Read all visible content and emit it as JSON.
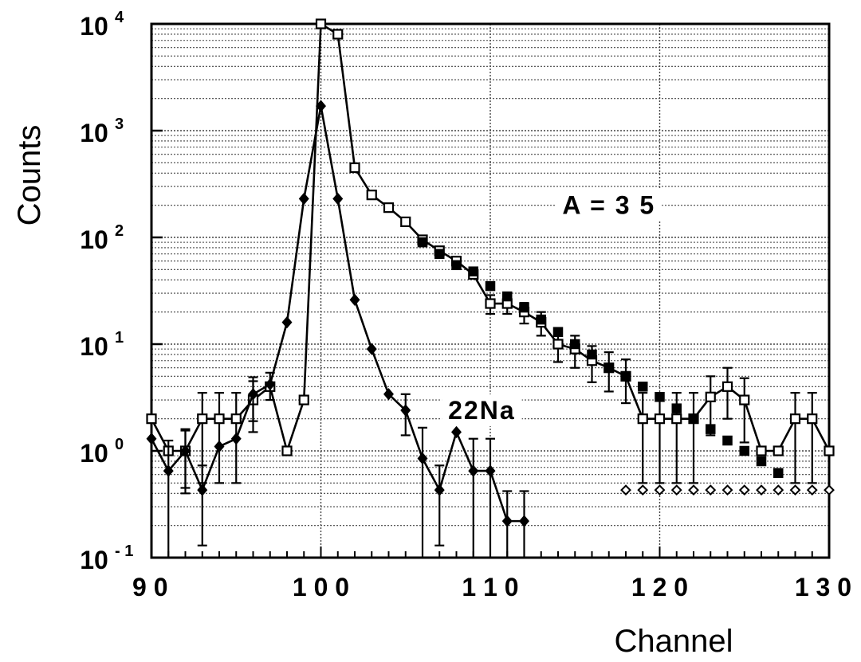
{
  "chart_data": {
    "type": "scatter",
    "title": "",
    "xlabel": "Channel",
    "ylabel": "Counts",
    "xlim": [
      90,
      130
    ],
    "ylim": [
      0.1,
      10000
    ],
    "yscale": "log",
    "grid": "dotted horizontal minor lines, vertical line every 10 channels",
    "x_ticks": [
      {
        "value": 90,
        "label": "9 0"
      },
      {
        "value": 100,
        "label": "1 0 0"
      },
      {
        "value": 110,
        "label": "1 1 0"
      },
      {
        "value": 120,
        "label": "1 2 0"
      },
      {
        "value": 130,
        "label": "1 3 0"
      }
    ],
    "y_ticks": [
      {
        "value": 0.1,
        "base": "10",
        "exp": "- 1"
      },
      {
        "value": 1,
        "base": "10",
        "exp": "0"
      },
      {
        "value": 10,
        "base": "10",
        "exp": "1"
      },
      {
        "value": 100,
        "base": "10",
        "exp": "2"
      },
      {
        "value": 1000,
        "base": "10",
        "exp": "3"
      },
      {
        "value": 10000,
        "base": "10",
        "exp": "4"
      }
    ],
    "annotations": [
      {
        "text": "A = 3 5",
        "x": 117,
        "y": 200
      },
      {
        "text": "22Na",
        "x": 109.5,
        "y": 2.4
      }
    ],
    "series": [
      {
        "id": "A35",
        "marker": "open-square",
        "connected": true,
        "x": [
          90,
          91,
          92,
          93,
          94,
          95,
          96,
          97,
          98,
          99,
          100,
          101,
          102,
          103,
          104,
          105,
          106,
          107,
          108,
          109,
          110,
          111,
          112,
          113,
          114,
          115,
          116,
          117,
          118,
          119,
          120,
          121,
          122,
          123,
          124,
          125,
          126,
          127,
          128,
          129,
          130
        ],
        "y": [
          2,
          1,
          1,
          2,
          2,
          2,
          3,
          4,
          1,
          3,
          10000,
          8000,
          450,
          250,
          190,
          140,
          95,
          75,
          60,
          45,
          24,
          24,
          20,
          16,
          10,
          9,
          7,
          6,
          5,
          2,
          2,
          2,
          2,
          3.2,
          4,
          3,
          1,
          1,
          2,
          2,
          1
        ],
        "err": [
          0,
          0,
          0.6,
          1.5,
          1.5,
          1.5,
          1.5,
          0,
          0,
          0,
          0,
          0,
          0,
          0,
          0,
          0,
          0,
          0,
          0,
          0,
          4.8,
          4.8,
          4.4,
          4,
          3.2,
          3,
          2.6,
          2.4,
          2.2,
          1.5,
          1.5,
          1.5,
          1.5,
          1.8,
          2,
          1.8,
          0,
          0,
          1.5,
          1.5,
          0
        ]
      },
      {
        "id": "A35-filled",
        "marker": "filled-square",
        "connected": false,
        "x": [
          106,
          107,
          108,
          109,
          110,
          111,
          112,
          113,
          114,
          115,
          116,
          117,
          118,
          119,
          120,
          121,
          122,
          123,
          124,
          125,
          126,
          127
        ],
        "y": [
          90,
          70,
          55,
          48,
          35,
          28,
          22,
          17,
          13,
          10,
          8,
          6,
          5,
          4,
          3.2,
          2.5,
          2,
          1.6,
          1.25,
          1,
          0.8,
          0.62
        ]
      },
      {
        "id": "22Na",
        "marker": "filled-diamond",
        "connected": true,
        "x": [
          90,
          91,
          92,
          93,
          94,
          95,
          96,
          97,
          98,
          99,
          100,
          101,
          102,
          103,
          104,
          105,
          106,
          107,
          108,
          109,
          110,
          111,
          112
        ],
        "y": [
          1.3,
          0.65,
          1,
          0.43,
          1.1,
          1.3,
          3.4,
          4.2,
          16,
          230,
          1700,
          230,
          26,
          9,
          3.4,
          2.4,
          0.85,
          0.43,
          1.5,
          0.65,
          0.65,
          0.22,
          0.22
        ],
        "err": [
          0,
          0.6,
          0.55,
          0.3,
          0,
          0,
          1.5,
          1.2,
          0,
          0,
          0,
          0,
          0,
          0,
          0,
          1,
          0.8,
          0.3,
          0,
          0.65,
          0.65,
          0.2,
          0.2
        ]
      },
      {
        "id": "22Na-tail",
        "marker": "open-diamond",
        "connected": false,
        "x": [
          118,
          119,
          120,
          121,
          122,
          123,
          124,
          125,
          126,
          127,
          128,
          129,
          130
        ],
        "y": [
          0.43,
          0.43,
          0.43,
          0.43,
          0.43,
          0.43,
          0.43,
          0.43,
          0.43,
          0.43,
          0.43,
          0.43,
          0.43
        ]
      }
    ]
  }
}
